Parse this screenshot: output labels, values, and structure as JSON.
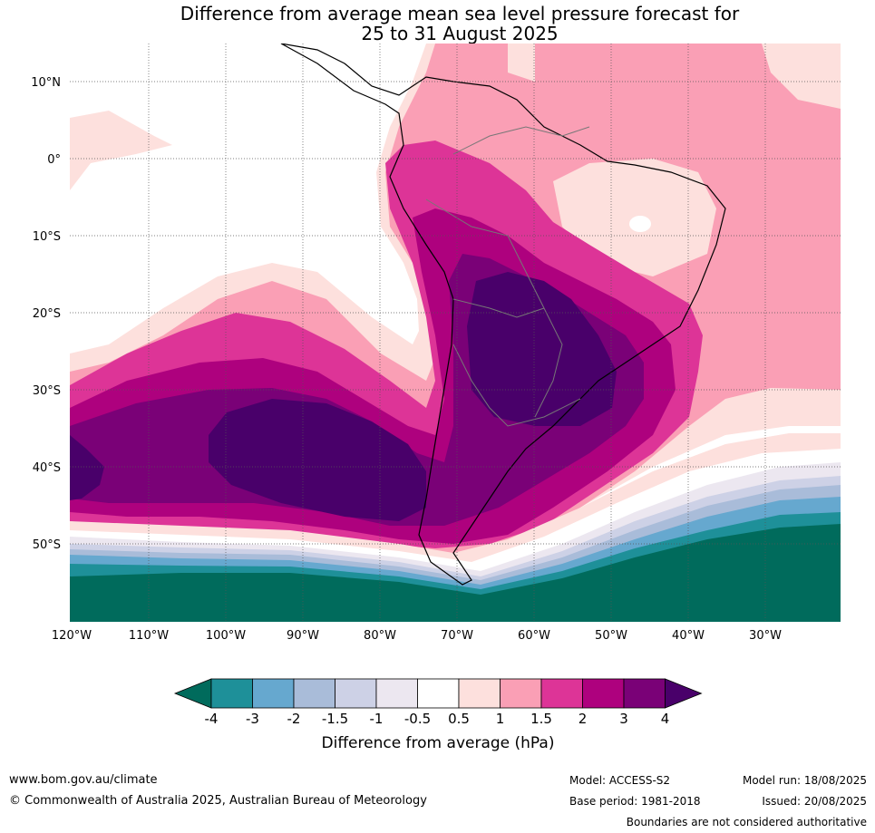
{
  "title": {
    "line1": "Difference from average mean sea level pressure forecast for",
    "line2": "25 to 31 August 2025"
  },
  "axes": {
    "lat_labels": [
      "10°N",
      "0°",
      "10°S",
      "20°S",
      "30°S",
      "40°S",
      "50°S"
    ],
    "lon_labels": [
      "120°W",
      "110°W",
      "100°W",
      "90°W",
      "80°W",
      "70°W",
      "60°W",
      "50°W",
      "40°W",
      "30°W"
    ]
  },
  "colorbar": {
    "label": "Difference from average (hPa)",
    "ticks": [
      "-4",
      "-3",
      "-2",
      "-1.5",
      "-1",
      "-0.5",
      "0.5",
      "1",
      "1.5",
      "2",
      "3",
      "4"
    ],
    "colors": {
      "below_-4": "#006b5c",
      "-4_-3": "#1e9099",
      "-3_-2": "#66a8cf",
      "-2_-1.5": "#a9bcd9",
      "-1.5_-1": "#cdd1e6",
      "-1_-0.5": "#ece7f0",
      "-0.5_0.5": "#ffffff",
      "0.5_1": "#fde0dd",
      "1_1.5": "#fa9fb5",
      "1.5_2": "#dd3497",
      "2_3": "#ae017e",
      "3_4": "#7a0177",
      "above_4": "#49006a"
    }
  },
  "footer": {
    "website": "www.bom.gov.au/climate",
    "copyright": "© Commonwealth of Australia 2025, Australian Bureau of Meteorology",
    "model": "Model: ACCESS-S2",
    "base_period": "Base period: 1981-2018",
    "model_run": "Model run: 18/08/2025",
    "issued": "Issued: 20/08/2025",
    "disclaimer": "Boundaries are not considered authoritative"
  }
}
